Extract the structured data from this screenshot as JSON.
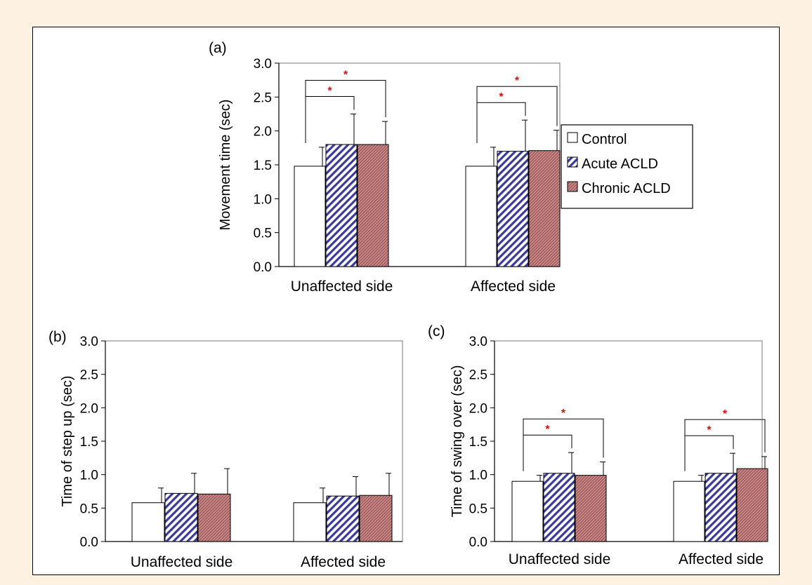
{
  "chart_data": [
    {
      "type": "bar",
      "panel_label": "(a)",
      "title": "",
      "ylabel": "Movement time (sec)",
      "xlabel": "",
      "ylim": [
        0,
        3.0
      ],
      "yticks": [
        "0.0",
        "0.5",
        "1.0",
        "1.5",
        "2.0",
        "2.5",
        "3.0"
      ],
      "categories": [
        "Unaffected side",
        "Affected side"
      ],
      "series": [
        {
          "name": "Control",
          "values": [
            1.48,
            1.48
          ],
          "errors": [
            0.28,
            0.28
          ]
        },
        {
          "name": "Acute ACLD",
          "values": [
            1.8,
            1.7
          ],
          "errors": [
            0.45,
            0.46
          ]
        },
        {
          "name": "Chronic ACLD",
          "values": [
            1.8,
            1.71
          ],
          "errors": [
            0.34,
            0.3
          ]
        }
      ],
      "significance": [
        {
          "category": 0,
          "from": 0,
          "to": 1,
          "label": "*"
        },
        {
          "category": 0,
          "from": 0,
          "to": 2,
          "label": "*"
        },
        {
          "category": 1,
          "from": 0,
          "to": 1,
          "label": "*"
        },
        {
          "category": 1,
          "from": 0,
          "to": 2,
          "label": "*"
        }
      ],
      "legend": true
    },
    {
      "type": "bar",
      "panel_label": "(b)",
      "title": "",
      "ylabel": "Time of step up (sec)",
      "xlabel": "",
      "ylim": [
        0,
        3.0
      ],
      "yticks": [
        "0.0",
        "0.5",
        "1.0",
        "1.5",
        "2.0",
        "2.5",
        "3.0"
      ],
      "categories": [
        "Unaffected side",
        "Affected side"
      ],
      "series": [
        {
          "name": "Control",
          "values": [
            0.58,
            0.58
          ],
          "errors": [
            0.22,
            0.22
          ]
        },
        {
          "name": "Acute ACLD",
          "values": [
            0.72,
            0.68
          ],
          "errors": [
            0.3,
            0.29
          ]
        },
        {
          "name": "Chronic ACLD",
          "values": [
            0.71,
            0.69
          ],
          "errors": [
            0.38,
            0.33
          ]
        }
      ],
      "significance": [],
      "legend": false
    },
    {
      "type": "bar",
      "panel_label": "(c)",
      "title": "",
      "ylabel": "Time of swing over (sec)",
      "xlabel": "",
      "ylim": [
        0,
        3.0
      ],
      "yticks": [
        "0.0",
        "0.5",
        "1.0",
        "1.5",
        "2.0",
        "2.5",
        "3.0"
      ],
      "categories": [
        "Unaffected side",
        "Affected side"
      ],
      "series": [
        {
          "name": "Control",
          "values": [
            0.9,
            0.9
          ],
          "errors": [
            0.09,
            0.09
          ]
        },
        {
          "name": "Acute ACLD",
          "values": [
            1.02,
            1.02
          ],
          "errors": [
            0.31,
            0.3
          ]
        },
        {
          "name": "Chronic ACLD",
          "values": [
            0.99,
            1.09
          ],
          "errors": [
            0.2,
            0.18
          ]
        }
      ],
      "significance": [
        {
          "category": 0,
          "from": 0,
          "to": 1,
          "label": "*"
        },
        {
          "category": 0,
          "from": 0,
          "to": 2,
          "label": "*"
        },
        {
          "category": 1,
          "from": 0,
          "to": 1,
          "label": "*"
        },
        {
          "category": 1,
          "from": 0,
          "to": 2,
          "label": "*"
        }
      ],
      "legend": false
    }
  ],
  "legend": {
    "items": [
      {
        "name": "Control",
        "pattern": "plain",
        "color": "#ffffff"
      },
      {
        "name": "Acute ACLD",
        "pattern": "diagonal",
        "color": "#3a3a9a"
      },
      {
        "name": "Chronic ACLD",
        "pattern": "dense",
        "color": "#b36a6a"
      }
    ]
  },
  "colors": {
    "page_background": "#fdf1e2",
    "significance_star": "#d01010",
    "acute_hatch": "#3a3a9a",
    "chronic_fill": "#b36a6a"
  }
}
